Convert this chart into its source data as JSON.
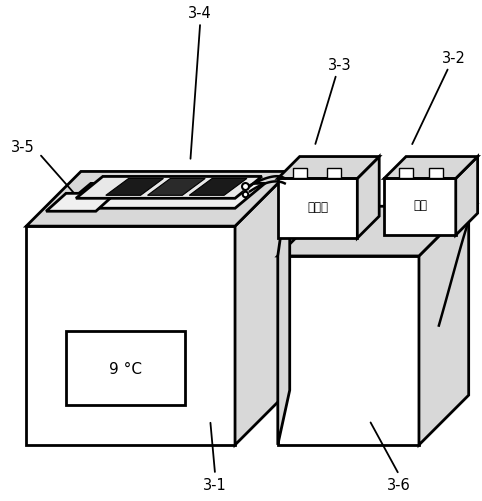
{
  "background_color": "#ffffff",
  "line_color": "#000000",
  "fill_light": "#d8d8d8",
  "fill_white": "#ffffff",
  "fill_mid": "#c0c0c0",
  "temp_label": "9 °C",
  "labels": [
    "3-4",
    "3-5",
    "3-3",
    "3-2",
    "3-1",
    "3-6"
  ],
  "box1_text": "电阵筱",
  "box2_text": "电源"
}
